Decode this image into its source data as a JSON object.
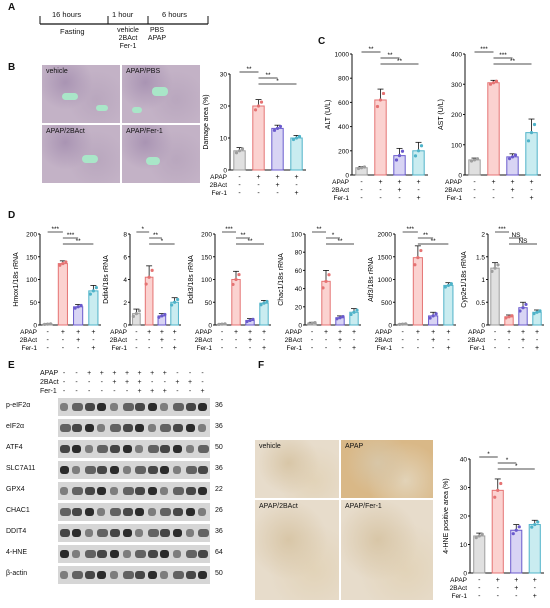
{
  "panels": {
    "A": {
      "label": "A",
      "segments": [
        {
          "label": "16 hours",
          "sub": [
            "Fasting"
          ]
        },
        {
          "label": "1 hour",
          "sub": [
            "vehicle",
            "2BAct",
            "Fer-1"
          ]
        },
        {
          "label": "6 hours",
          "sub": [
            "PBS",
            "APAP"
          ]
        }
      ]
    },
    "B": {
      "label": "B",
      "micrographs": [
        "vehicle",
        "APAP/PBS",
        "APAP/2BAct",
        "APAP/Fer-1"
      ],
      "chart": {
        "ylabel": "Damage area (%)",
        "yticks": [
          "0",
          "10",
          "20",
          "30"
        ]
      }
    },
    "C": {
      "label": "C"
    },
    "D": {
      "label": "D"
    },
    "E": {
      "label": "E",
      "treat_rows": [
        {
          "label": "APAP",
          "signs": [
            "-",
            "-",
            "+",
            "+",
            "+",
            "+",
            "+",
            "+",
            "+",
            "-",
            "-",
            "-"
          ]
        },
        {
          "label": "2BAct",
          "signs": [
            "-",
            "-",
            "-",
            "-",
            "+",
            "+",
            "+",
            "-",
            "-",
            "+",
            "+",
            "-"
          ]
        },
        {
          "label": "Fer-1",
          "signs": [
            "-",
            "-",
            "-",
            "-",
            "-",
            "-",
            "+",
            "+",
            "+",
            "-",
            "-",
            "+"
          ]
        }
      ],
      "proteins": [
        {
          "name": "p-eIF2α",
          "kda": "36"
        },
        {
          "name": "eIF2α",
          "kda": "36"
        },
        {
          "name": "ATF4",
          "kda": "50"
        },
        {
          "name": "SLC7A11",
          "kda": "36"
        },
        {
          "name": "GPX4",
          "kda": "22"
        },
        {
          "name": "CHAC1",
          "kda": "26"
        },
        {
          "name": "DDIT4",
          "kda": "36"
        },
        {
          "name": "4-HNE",
          "kda": "64"
        },
        {
          "name": "β-actin",
          "kda": "50"
        }
      ]
    },
    "F": {
      "label": "F",
      "micrographs": [
        "vehicle",
        "APAP",
        "APAP/2BAct",
        "APAP/Fer-1"
      ],
      "chart": {
        "ylabel": "4-HNE positive area (%)",
        "yticks": [
          "0",
          "10",
          "20",
          "30",
          "40"
        ]
      }
    }
  },
  "treat_labels": [
    "APAP",
    "2BAct",
    "Fer-1"
  ],
  "chart_data": [
    {
      "id": "B",
      "type": "bar",
      "ylabel": "Damage area (%)",
      "ylim": [
        0,
        30
      ],
      "categories": [
        "vehicle",
        "APAP",
        "APAP+2BAct",
        "APAP+Fer-1"
      ],
      "values": [
        6,
        20,
        13,
        10
      ],
      "errors": [
        1,
        2,
        1,
        0.8
      ],
      "signs": [
        [
          "-",
          "+",
          "+",
          "+"
        ],
        [
          "-",
          "-",
          "+",
          "-"
        ],
        [
          "-",
          "-",
          "-",
          "+"
        ]
      ],
      "sig": [
        {
          "a": 0,
          "b": 1,
          "t": "**"
        },
        {
          "a": 1,
          "b": 2,
          "t": "**"
        },
        {
          "a": 1,
          "b": 3,
          "t": "*"
        }
      ]
    },
    {
      "id": "ALT",
      "type": "bar",
      "ylabel": "ALT (U/L)",
      "ylim": [
        0,
        1000
      ],
      "yticks": [
        0,
        200,
        400,
        600,
        800,
        1000
      ],
      "values": [
        60,
        620,
        160,
        200
      ],
      "errors": [
        10,
        90,
        60,
        70
      ],
      "signs": [
        [
          "-",
          "+",
          "+",
          "+"
        ],
        [
          "-",
          "-",
          "+",
          "-"
        ],
        [
          "-",
          "-",
          "-",
          "+"
        ]
      ],
      "sig": [
        {
          "a": 0,
          "b": 1,
          "t": "**"
        },
        {
          "a": 1,
          "b": 2,
          "t": "**"
        },
        {
          "a": 1,
          "b": 3,
          "t": "**"
        }
      ]
    },
    {
      "id": "AST",
      "type": "bar",
      "ylabel": "AST (U/L)",
      "ylim": [
        0,
        400
      ],
      "yticks": [
        0,
        100,
        200,
        300,
        400
      ],
      "values": [
        50,
        305,
        60,
        140
      ],
      "errors": [
        6,
        8,
        10,
        45
      ],
      "signs": [
        [
          "-",
          "+",
          "+",
          "+"
        ],
        [
          "-",
          "-",
          "+",
          "-"
        ],
        [
          "-",
          "-",
          "-",
          "+"
        ]
      ],
      "sig": [
        {
          "a": 0,
          "b": 1,
          "t": "***"
        },
        {
          "a": 1,
          "b": 2,
          "t": "***"
        },
        {
          "a": 1,
          "b": 3,
          "t": "**"
        }
      ]
    },
    {
      "id": "Hmox1",
      "type": "bar",
      "ylabel": "Hmox1/18s rRNA",
      "ylim": [
        0,
        200
      ],
      "yticks": [
        0,
        50,
        100,
        150,
        200
      ],
      "values": [
        2,
        135,
        40,
        75
      ],
      "errors": [
        1,
        6,
        5,
        12
      ],
      "signs": [
        [
          "-",
          "+",
          "+",
          "+"
        ],
        [
          "-",
          "-",
          "+",
          "-"
        ],
        [
          "-",
          "-",
          "-",
          "+"
        ]
      ],
      "sig": [
        {
          "a": 0,
          "b": 1,
          "t": "***"
        },
        {
          "a": 1,
          "b": 2,
          "t": "***"
        },
        {
          "a": 1,
          "b": 3,
          "t": "**"
        }
      ]
    },
    {
      "id": "Ddit4",
      "type": "bar",
      "ylabel": "Ddit4/18s rRNA",
      "ylim": [
        0,
        8
      ],
      "yticks": [
        0,
        2,
        4,
        6,
        8
      ],
      "values": [
        1,
        4.2,
        0.8,
        2
      ],
      "errors": [
        0.4,
        1,
        0.2,
        0.4
      ],
      "signs": [
        [
          "-",
          "+",
          "+",
          "+"
        ],
        [
          "-",
          "-",
          "+",
          "-"
        ],
        [
          "-",
          "-",
          "-",
          "+"
        ]
      ],
      "sig": [
        {
          "a": 0,
          "b": 1,
          "t": "*"
        },
        {
          "a": 1,
          "b": 2,
          "t": "**"
        },
        {
          "a": 1,
          "b": 3,
          "t": "*"
        }
      ]
    },
    {
      "id": "Ddit3",
      "type": "bar",
      "ylabel": "Ddit3/18s rRNA",
      "ylim": [
        0,
        200
      ],
      "yticks": [
        0,
        50,
        100,
        150,
        200
      ],
      "values": [
        2,
        100,
        10,
        48
      ],
      "errors": [
        1,
        18,
        4,
        6
      ],
      "signs": [
        [
          "-",
          "+",
          "+",
          "+"
        ],
        [
          "-",
          "-",
          "+",
          "-"
        ],
        [
          "-",
          "-",
          "-",
          "+"
        ]
      ],
      "sig": [
        {
          "a": 0,
          "b": 1,
          "t": "***"
        },
        {
          "a": 1,
          "b": 2,
          "t": "**"
        },
        {
          "a": 1,
          "b": 3,
          "t": "**"
        }
      ]
    },
    {
      "id": "Chac1",
      "type": "bar",
      "ylabel": "Chac1/18s rRNA",
      "ylim": [
        0,
        100
      ],
      "yticks": [
        0,
        20,
        40,
        60,
        80,
        100
      ],
      "values": [
        2,
        48,
        8,
        14
      ],
      "errors": [
        1,
        12,
        2,
        4
      ],
      "signs": [
        [
          "-",
          "+",
          "+",
          "+"
        ],
        [
          "-",
          "-",
          "+",
          "-"
        ],
        [
          "-",
          "-",
          "-",
          "+"
        ]
      ],
      "sig": [
        {
          "a": 0,
          "b": 1,
          "t": "**"
        },
        {
          "a": 1,
          "b": 2,
          "t": "*"
        },
        {
          "a": 1,
          "b": 3,
          "t": "**"
        }
      ]
    },
    {
      "id": "Atf3",
      "type": "bar",
      "ylabel": "Atf3/18s rRNA",
      "ylim": [
        0,
        2000
      ],
      "yticks": [
        0,
        500,
        1000,
        1500,
        2000
      ],
      "values": [
        20,
        1480,
        200,
        870
      ],
      "errors": [
        10,
        260,
        80,
        60
      ],
      "signs": [
        [
          "-",
          "+",
          "+",
          "+"
        ],
        [
          "-",
          "-",
          "+",
          "-"
        ],
        [
          "-",
          "-",
          "-",
          "+"
        ]
      ],
      "sig": [
        {
          "a": 0,
          "b": 1,
          "t": "***"
        },
        {
          "a": 1,
          "b": 2,
          "t": "**"
        },
        {
          "a": 1,
          "b": 3,
          "t": "**"
        }
      ]
    },
    {
      "id": "Cyp2e1",
      "type": "bar",
      "ylabel": "Cyp2e1/18s rRNA",
      "ylim": [
        0,
        2.0
      ],
      "yticks": [
        0,
        0.5,
        1.0,
        1.5,
        2.0
      ],
      "values": [
        1.25,
        0.18,
        0.38,
        0.28
      ],
      "errors": [
        0.12,
        0.04,
        0.12,
        0.05
      ],
      "signs": [
        [
          "-",
          "+",
          "+",
          "+"
        ],
        [
          "-",
          "-",
          "+",
          "-"
        ],
        [
          "-",
          "-",
          "-",
          "+"
        ]
      ],
      "sig": [
        {
          "a": 0,
          "b": 1,
          "t": "***"
        },
        {
          "a": 1,
          "b": 2,
          "t": "NS"
        },
        {
          "a": 1,
          "b": 3,
          "t": "NS"
        }
      ]
    },
    {
      "id": "F",
      "type": "bar",
      "ylabel": "4-HNE positive area (%)",
      "ylim": [
        0,
        40
      ],
      "yticks": [
        0,
        10,
        20,
        30,
        40
      ],
      "values": [
        13,
        29,
        15,
        17
      ],
      "errors": [
        1,
        4,
        2,
        1.5
      ],
      "signs": [
        [
          "-",
          "+",
          "+",
          "+"
        ],
        [
          "-",
          "-",
          "+",
          "-"
        ],
        [
          "-",
          "-",
          "-",
          "+"
        ]
      ],
      "sig": [
        {
          "a": 0,
          "b": 1,
          "t": "*"
        },
        {
          "a": 1,
          "b": 2,
          "t": "*"
        },
        {
          "a": 1,
          "b": 3,
          "t": "*"
        }
      ]
    }
  ],
  "colors": {
    "bars": [
      "#9e9e9e",
      "#e57373",
      "#6a5acd",
      "#4fb3c9"
    ],
    "fills": [
      "#e0e0e0",
      "#fbd2d0",
      "#d8d4f4",
      "#c9ecf0"
    ],
    "micro_lumen": "#a9e6c8"
  }
}
